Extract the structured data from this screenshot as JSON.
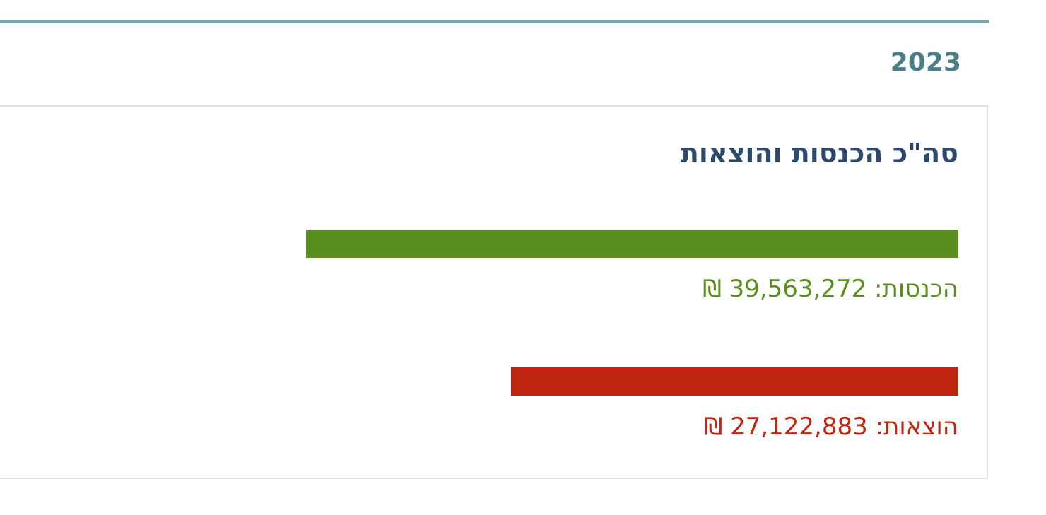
{
  "year": "2023",
  "card": {
    "title": "סה\"כ הכנסות והוצאות"
  },
  "chart_data": {
    "type": "bar",
    "orientation": "horizontal",
    "title": "סה\"כ הכנסות והוצאות",
    "series": [
      {
        "name": "הכנסות",
        "value": 39563272,
        "label": "הכנסות: 39,563,272 ₪",
        "color": "#5a8f1f"
      },
      {
        "name": "הוצאות",
        "value": 27122883,
        "label": "הוצאות: 27,122,883 ₪",
        "color": "#c0260f"
      }
    ]
  },
  "colors": {
    "accent_line": "#7aa6ac",
    "year": "#4b7f88",
    "title": "#2b4a6b"
  }
}
